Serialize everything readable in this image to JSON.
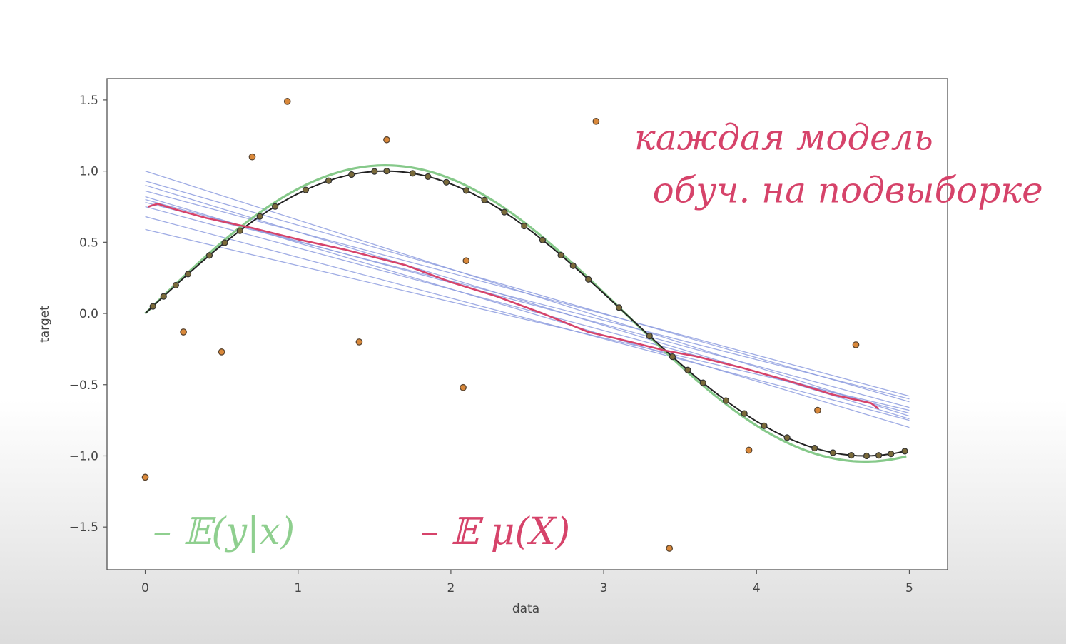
{
  "chart_data": {
    "type": "scatter",
    "xlabel": "data",
    "ylabel": "target",
    "xlim": [
      -0.25,
      5.25
    ],
    "ylim": [
      -1.8,
      1.65
    ],
    "xticks": [
      0,
      1,
      2,
      3,
      4,
      5
    ],
    "yticks": [
      1.5,
      1.0,
      0.5,
      0.0,
      -0.5,
      -1.0,
      -1.5
    ],
    "xtick_labels": [
      "0",
      "1",
      "2",
      "3",
      "4",
      "5"
    ],
    "ytick_labels": [
      "1.5",
      "1.0",
      "0.5",
      "0.0",
      "−0.5",
      "−1.0",
      "−1.5"
    ],
    "grid": false,
    "colors": {
      "noisy_points": "#d9883a",
      "model_lines": "#8f9ee0",
      "true_curve": "#86c98a",
      "fit_curve": "#222222",
      "mean_model": "#d6436a"
    },
    "noisy_points": {
      "x": [
        0.0,
        0.25,
        0.5,
        0.7,
        0.93,
        1.4,
        1.58,
        2.08,
        2.1,
        2.95,
        3.43,
        3.95,
        4.4,
        4.65
      ],
      "y": [
        -1.15,
        -0.13,
        -0.27,
        1.1,
        1.49,
        -0.2,
        1.22,
        -0.52,
        0.37,
        1.35,
        -1.65,
        -0.96,
        -0.68,
        -0.22
      ]
    },
    "on_curve_x": [
      0.05,
      0.12,
      0.2,
      0.28,
      0.42,
      0.52,
      0.62,
      0.75,
      0.85,
      1.05,
      1.2,
      1.35,
      1.5,
      1.58,
      1.75,
      1.85,
      1.97,
      2.1,
      2.22,
      2.35,
      2.48,
      2.6,
      2.72,
      2.8,
      2.9,
      3.1,
      3.3,
      3.45,
      3.55,
      3.65,
      3.8,
      3.92,
      4.05,
      4.2,
      4.38,
      4.5,
      4.62,
      4.72,
      4.8,
      4.88,
      4.97
    ],
    "model_lines": [
      {
        "y0": 1.0,
        "y1": -0.72
      },
      {
        "y0": 0.93,
        "y1": -0.62
      },
      {
        "y0": 0.86,
        "y1": -0.58
      },
      {
        "y0": 0.8,
        "y1": -0.66
      },
      {
        "y0": 0.75,
        "y1": -0.7
      },
      {
        "y0": 0.82,
        "y1": -0.8
      },
      {
        "y0": 0.68,
        "y1": -0.75
      },
      {
        "y0": 0.59,
        "y1": -0.68
      },
      {
        "y0": 0.9,
        "y1": -0.74
      },
      {
        "y0": 0.78,
        "y1": -0.6
      }
    ],
    "mean_model": {
      "x": [
        0.02,
        0.08,
        0.2,
        0.4,
        0.7,
        1.0,
        1.3,
        1.7,
        2.0,
        2.3,
        2.6,
        2.9,
        3.1,
        3.25,
        3.4,
        3.6,
        3.9,
        4.2,
        4.5,
        4.75,
        4.8
      ],
      "y": [
        0.75,
        0.77,
        0.73,
        0.67,
        0.6,
        0.52,
        0.45,
        0.34,
        0.22,
        0.12,
        0.0,
        -0.13,
        -0.18,
        -0.22,
        -0.26,
        -0.3,
        -0.38,
        -0.47,
        -0.57,
        -0.63,
        -0.67
      ]
    },
    "annotations": [
      {
        "text": "каждая модель",
        "x": 3.2,
        "y": 1.15
      },
      {
        "text": "обуч. на подвыборке",
        "x": 3.32,
        "y": 0.78
      },
      {
        "text": "– 𝔼(y|x)",
        "x": 0.05,
        "y": -1.62
      },
      {
        "text": "– 𝔼 μ(X)",
        "x": 1.8,
        "y": -1.62
      }
    ]
  }
}
